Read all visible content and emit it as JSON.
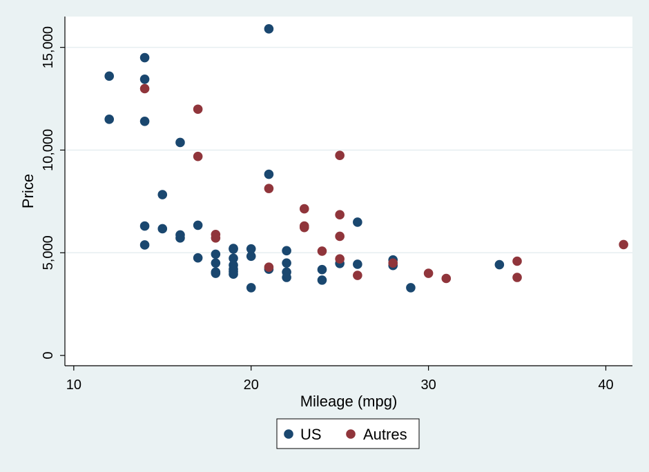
{
  "chart_data": {
    "type": "scatter",
    "title": "",
    "xlabel": "Mileage (mpg)",
    "ylabel": "Price",
    "xlim": [
      9.5,
      41.5
    ],
    "ylim": [
      -500,
      16500
    ],
    "xticks": [
      10,
      20,
      30,
      40
    ],
    "xtick_labels": [
      "10",
      "20",
      "30",
      "40"
    ],
    "yticks": [
      0,
      5000,
      10000,
      15000
    ],
    "ytick_labels": [
      "0",
      "5,000",
      "10,000",
      "15,000"
    ],
    "grid": "horizontal",
    "legend_position": "bottom",
    "colors": {
      "plot_bg": "#ffffff",
      "outer_bg": "#eaf2f3",
      "grid": "#e6eef0",
      "axis": "#000000"
    },
    "series": [
      {
        "name": "US",
        "color": "#1a476f",
        "points": [
          [
            12,
            13600
          ],
          [
            12,
            11500
          ],
          [
            14,
            14500
          ],
          [
            14,
            13450
          ],
          [
            14,
            11400
          ],
          [
            14,
            6300
          ],
          [
            14,
            5380
          ],
          [
            15,
            7830
          ],
          [
            15,
            6170
          ],
          [
            16,
            10370
          ],
          [
            16,
            5870
          ],
          [
            16,
            5720
          ],
          [
            17,
            6340
          ],
          [
            17,
            4750
          ],
          [
            18,
            4930
          ],
          [
            18,
            4500
          ],
          [
            18,
            4060
          ],
          [
            18,
            4000
          ],
          [
            19,
            5210
          ],
          [
            19,
            5180
          ],
          [
            19,
            4730
          ],
          [
            19,
            4400
          ],
          [
            19,
            4200
          ],
          [
            19,
            4080
          ],
          [
            19,
            3960
          ],
          [
            20,
            5190
          ],
          [
            20,
            4830
          ],
          [
            20,
            3300
          ],
          [
            21,
            15900
          ],
          [
            21,
            8820
          ],
          [
            21,
            4200
          ],
          [
            22,
            5100
          ],
          [
            22,
            4500
          ],
          [
            22,
            4060
          ],
          [
            22,
            3800
          ],
          [
            24,
            4180
          ],
          [
            24,
            3670
          ],
          [
            25,
            4480
          ],
          [
            26,
            6490
          ],
          [
            26,
            4440
          ],
          [
            28,
            4650
          ],
          [
            28,
            4380
          ],
          [
            29,
            3300
          ],
          [
            34,
            4420
          ]
        ]
      },
      {
        "name": "Autres",
        "color": "#90353b",
        "points": [
          [
            14,
            12990
          ],
          [
            17,
            11990
          ],
          [
            17,
            9690
          ],
          [
            18,
            5890
          ],
          [
            18,
            5720
          ],
          [
            21,
            8130
          ],
          [
            21,
            4300
          ],
          [
            23,
            7140
          ],
          [
            23,
            6300
          ],
          [
            23,
            6230
          ],
          [
            24,
            5080
          ],
          [
            25,
            9740
          ],
          [
            25,
            6850
          ],
          [
            25,
            5800
          ],
          [
            25,
            4700
          ],
          [
            26,
            3900
          ],
          [
            28,
            4500
          ],
          [
            30,
            4000
          ],
          [
            31,
            3750
          ],
          [
            35,
            4590
          ],
          [
            35,
            3800
          ],
          [
            41,
            5400
          ]
        ]
      }
    ]
  }
}
